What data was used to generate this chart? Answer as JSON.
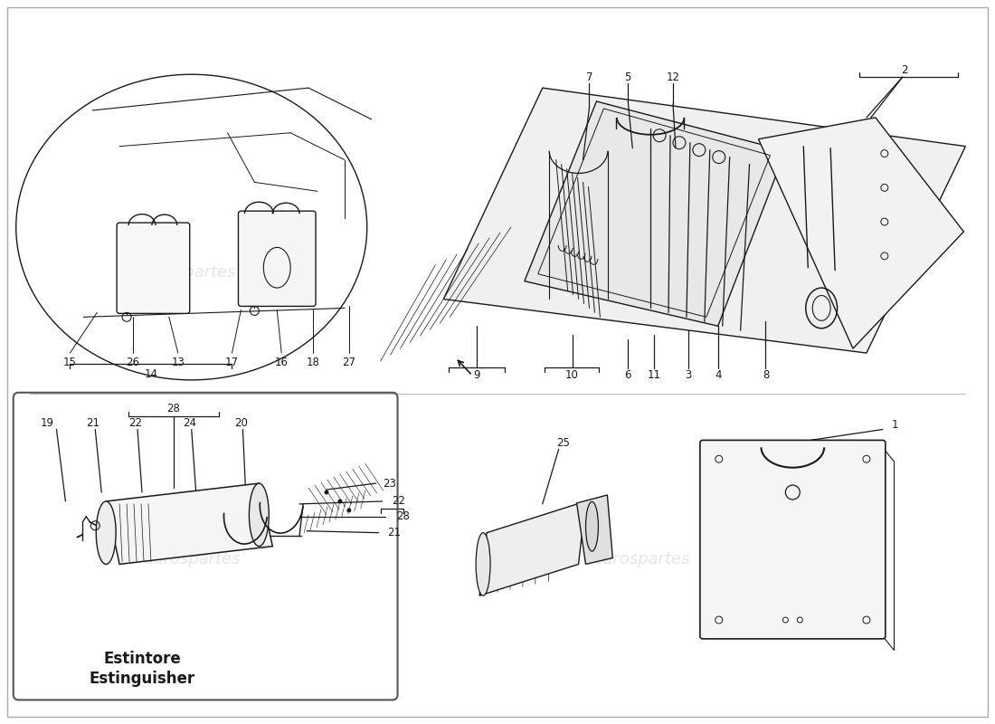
{
  "bg": "#ffffff",
  "lc": "#1a1a1a",
  "wm_color": "#c8c8c8",
  "wm_text": "eurospartes",
  "label_it": "Estintore",
  "label_en": "Estinguisher",
  "fig_w": 11.0,
  "fig_h": 8.0,
  "dpi": 100
}
